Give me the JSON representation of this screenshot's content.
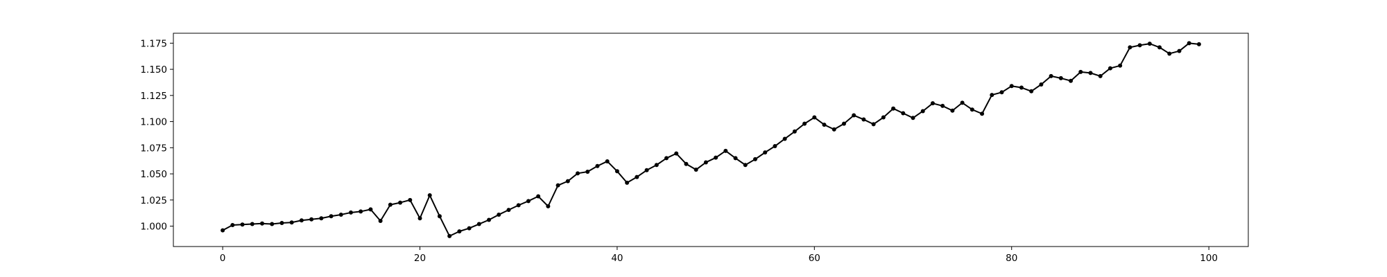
{
  "chart_data": {
    "type": "line",
    "title": "",
    "xlabel": "",
    "ylabel": "",
    "xlim": [
      -5,
      104
    ],
    "ylim": [
      0.9805,
      1.1845
    ],
    "grid": false,
    "legend": "none",
    "x_ticks": [
      {
        "value": 0,
        "label": "0"
      },
      {
        "value": 20,
        "label": "20"
      },
      {
        "value": 40,
        "label": "40"
      },
      {
        "value": 60,
        "label": "60"
      },
      {
        "value": 80,
        "label": "80"
      },
      {
        "value": 100,
        "label": "100"
      }
    ],
    "y_ticks": [
      {
        "value": 1.0,
        "label": "1.000"
      },
      {
        "value": 1.025,
        "label": "1.025"
      },
      {
        "value": 1.05,
        "label": "1.050"
      },
      {
        "value": 1.075,
        "label": "1.075"
      },
      {
        "value": 1.1,
        "label": "1.100"
      },
      {
        "value": 1.125,
        "label": "1.125"
      },
      {
        "value": 1.15,
        "label": "1.150"
      },
      {
        "value": 1.175,
        "label": "1.175"
      }
    ],
    "series": [
      {
        "color": "#000000",
        "marker": "circle",
        "x": [
          0,
          1,
          2,
          3,
          4,
          5,
          6,
          7,
          8,
          9,
          10,
          11,
          12,
          13,
          14,
          15,
          16,
          17,
          18,
          19,
          20,
          21,
          22,
          23,
          24,
          25,
          26,
          27,
          28,
          29,
          30,
          31,
          32,
          33,
          34,
          35,
          36,
          37,
          38,
          39,
          40,
          41,
          42,
          43,
          44,
          45,
          46,
          47,
          48,
          49,
          50,
          51,
          52,
          53,
          54,
          55,
          56,
          57,
          58,
          59,
          60,
          61,
          62,
          63,
          64,
          65,
          66,
          67,
          68,
          69,
          70,
          71,
          72,
          73,
          74,
          75,
          76,
          77,
          78,
          79,
          80,
          81,
          82,
          83,
          84,
          85,
          86,
          87,
          88,
          89,
          90,
          91,
          92,
          93,
          94,
          95,
          96,
          97,
          98,
          99
        ],
        "values": [
          0.996,
          1.001,
          1.0015,
          1.002,
          1.0025,
          1.002,
          1.003,
          1.0035,
          1.0055,
          1.0065,
          1.0075,
          1.0095,
          1.011,
          1.013,
          1.014,
          1.016,
          1.005,
          1.0205,
          1.0225,
          1.025,
          1.0075,
          1.0295,
          1.0095,
          0.9905,
          0.995,
          0.998,
          1.002,
          1.006,
          1.011,
          1.0155,
          1.02,
          1.024,
          1.0285,
          1.019,
          1.039,
          1.043,
          1.0505,
          1.052,
          1.0575,
          1.062,
          1.0525,
          1.0415,
          1.047,
          1.0535,
          1.0585,
          1.065,
          1.0695,
          1.0595,
          1.054,
          1.061,
          1.0655,
          1.072,
          1.065,
          1.0585,
          1.064,
          1.0705,
          1.0765,
          1.0835,
          1.0905,
          1.098,
          1.104,
          1.097,
          1.0925,
          1.098,
          1.106,
          1.102,
          1.0975,
          1.104,
          1.1125,
          1.108,
          1.1035,
          1.11,
          1.1175,
          1.115,
          1.1105,
          1.118,
          1.1115,
          1.1075,
          1.1255,
          1.128,
          1.134,
          1.1325,
          1.129,
          1.1355,
          1.1435,
          1.1415,
          1.139,
          1.1475,
          1.1465,
          1.1435,
          1.151,
          1.1535,
          1.171,
          1.173,
          1.1745,
          1.171,
          1.165,
          1.1675,
          1.175,
          1.174
        ]
      }
    ]
  }
}
